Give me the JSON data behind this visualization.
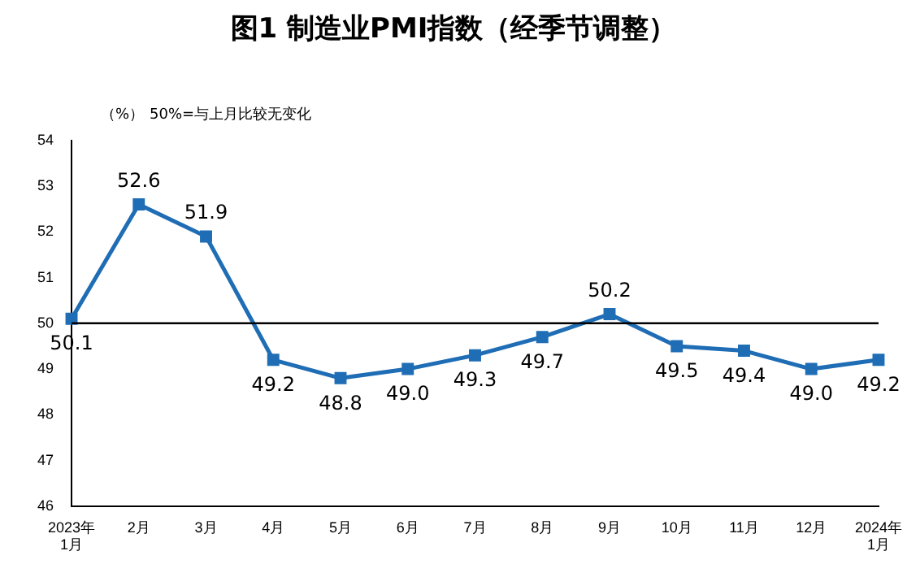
{
  "chart_data": {
    "type": "line",
    "title": "图1 制造业PMI指数（经季节调整）",
    "annotations": [
      "（%）",
      "50%=与上月比较无变化"
    ],
    "categories": [
      "2023年\n1月",
      "2月",
      "3月",
      "4月",
      "5月",
      "6月",
      "7月",
      "8月",
      "9月",
      "10月",
      "11月",
      "12月",
      "2024年\n1月"
    ],
    "series": [
      {
        "color": "#1f6db5",
        "values": [
          50.1,
          52.6,
          51.9,
          49.2,
          48.8,
          49.0,
          49.3,
          49.7,
          50.2,
          49.5,
          49.4,
          49.0,
          49.2
        ],
        "value_labels": [
          "50.1",
          "52.6",
          "51.9",
          "49.2",
          "48.8",
          "49.0",
          "49.3",
          "49.7",
          "50.2",
          "49.5",
          "49.4",
          "49.0",
          "49.2"
        ]
      }
    ],
    "ylim": [
      46,
      54
    ],
    "yticks": [
      46,
      47,
      48,
      49,
      50,
      51,
      52,
      53,
      54
    ],
    "ref_lines": [
      {
        "axis": "y",
        "value": 50,
        "color": "#000000"
      }
    ],
    "marker": "square",
    "line_style": "solid",
    "grid": false,
    "legend": false
  }
}
